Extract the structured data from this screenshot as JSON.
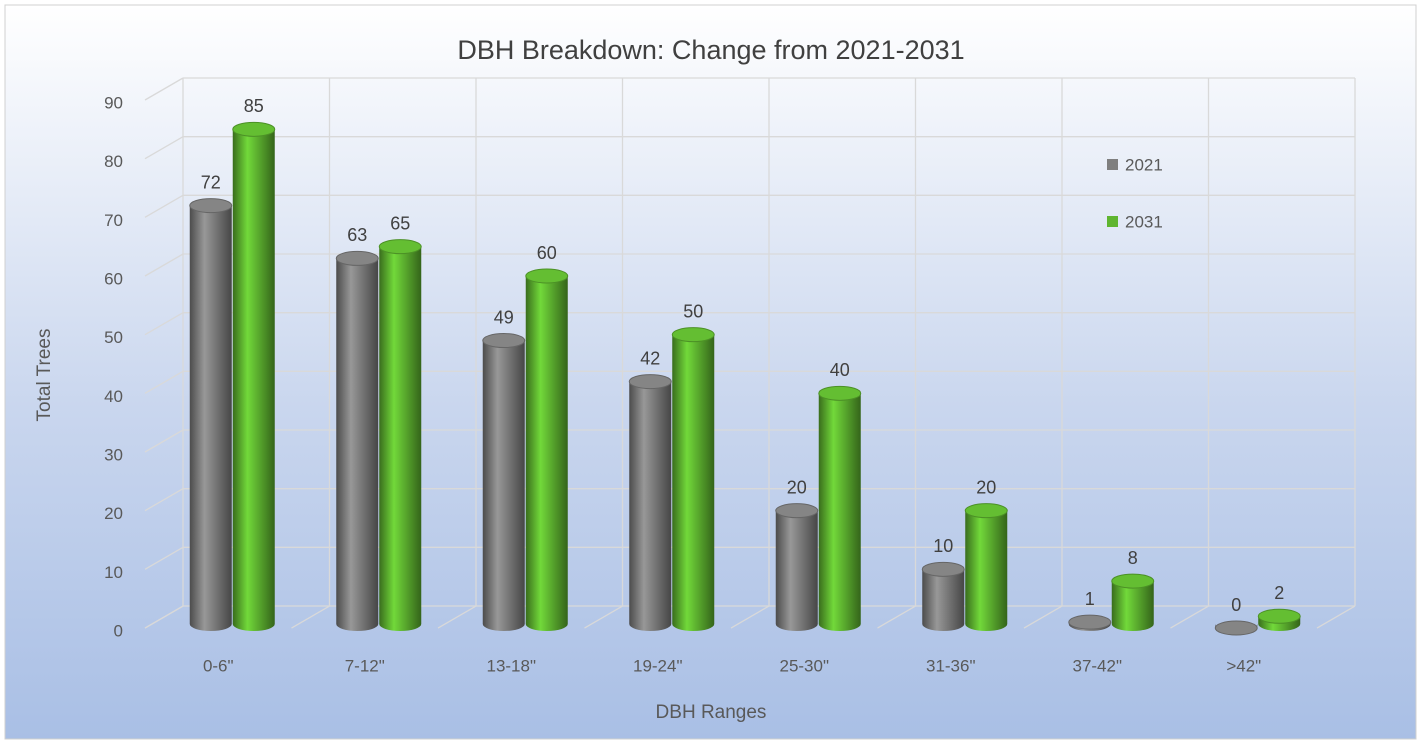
{
  "chart_data": {
    "type": "bar",
    "title": "DBH Breakdown: Change from 2021-2031",
    "x_label": "DBH Ranges",
    "y_label": "Total Trees",
    "categories": [
      "0-6\"",
      "7-12\"",
      "13-18\"",
      "19-24\"",
      "25-30\"",
      "31-36\"",
      "37-42\"",
      ">42\""
    ],
    "series": [
      {
        "name": "2021",
        "color": "#7f7f7f",
        "values": [
          72,
          63,
          49,
          42,
          20,
          10,
          1,
          0
        ]
      },
      {
        "name": "2031",
        "color": "#5fb530",
        "values": [
          85,
          65,
          60,
          50,
          40,
          20,
          8,
          2
        ]
      }
    ],
    "ylim": [
      0,
      90
    ],
    "yticks": [
      0,
      10,
      20,
      30,
      40,
      50,
      60,
      70,
      80,
      90
    ],
    "grid": true,
    "legend": "right"
  }
}
